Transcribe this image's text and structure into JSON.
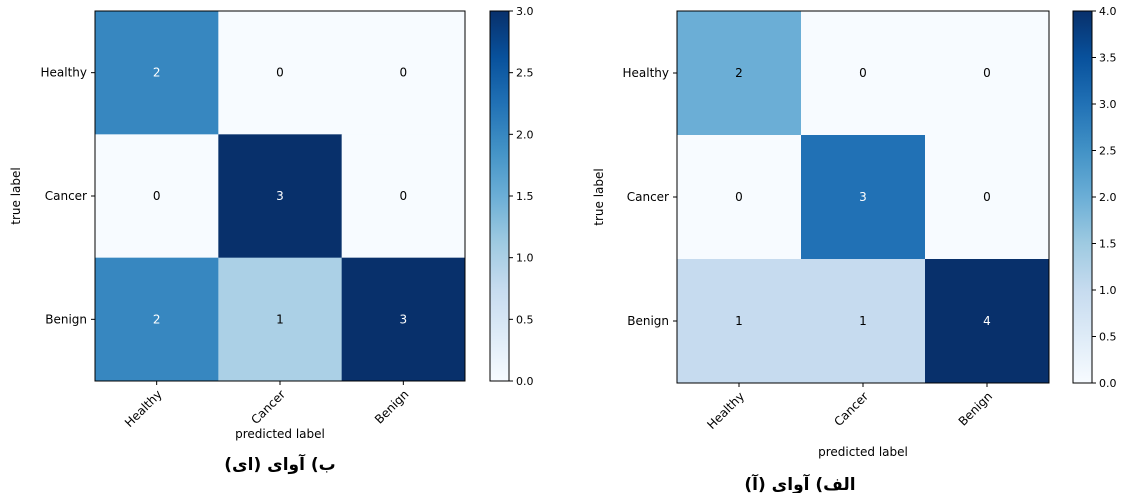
{
  "chart_data": [
    {
      "type": "heatmap",
      "caption": "ب) آوای (ای)",
      "xlabel": "predicted label",
      "ylabel": "true label",
      "categories": [
        "Healthy",
        "Cancer",
        "Benign"
      ],
      "matrix": [
        [
          2,
          0,
          0
        ],
        [
          0,
          3,
          0
        ],
        [
          2,
          1,
          3
        ]
      ],
      "colorscale": "Blues",
      "vmin": 0,
      "vmax": 3,
      "colorbar_ticks": [
        "0.0",
        "0.5",
        "1.0",
        "1.5",
        "2.0",
        "2.5",
        "3.0"
      ]
    },
    {
      "type": "heatmap",
      "caption": "الف) آوای (آ)",
      "xlabel": "predicted label",
      "ylabel": "true label",
      "categories": [
        "Healthy",
        "Cancer",
        "Benign"
      ],
      "matrix": [
        [
          2,
          0,
          0
        ],
        [
          0,
          3,
          0
        ],
        [
          1,
          1,
          4
        ]
      ],
      "colorscale": "Blues",
      "vmin": 0,
      "vmax": 4,
      "colorbar_ticks": [
        "0.0",
        "0.5",
        "1.0",
        "1.5",
        "2.0",
        "2.5",
        "3.0",
        "3.5",
        "4.0"
      ]
    }
  ]
}
